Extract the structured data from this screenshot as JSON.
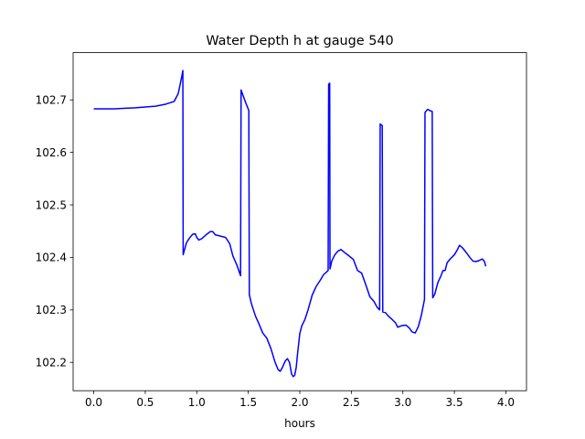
{
  "chart_data": {
    "type": "line",
    "title": "Water Depth h at gauge 540",
    "xlabel": "hours",
    "ylabel": "",
    "xlim": [
      -0.2,
      4.2
    ],
    "ylim": [
      102.146,
      102.79
    ],
    "xticks": [
      0.0,
      0.5,
      1.0,
      1.5,
      2.0,
      2.5,
      3.0,
      3.5,
      4.0
    ],
    "xtick_labels": [
      "0.0",
      "0.5",
      "1.0",
      "1.5",
      "2.0",
      "2.5",
      "3.0",
      "3.5",
      "4.0"
    ],
    "yticks": [
      102.2,
      102.3,
      102.4,
      102.5,
      102.6,
      102.7
    ],
    "ytick_labels": [
      "102.2",
      "102.3",
      "102.4",
      "102.5",
      "102.6",
      "102.7"
    ],
    "grid": false,
    "legend": "none",
    "series": [
      {
        "color": "#0000ff",
        "points": [
          [
            0.0,
            102.683
          ],
          [
            0.2,
            102.683
          ],
          [
            0.4,
            102.685
          ],
          [
            0.6,
            102.688
          ],
          [
            0.7,
            102.692
          ],
          [
            0.78,
            102.697
          ],
          [
            0.82,
            102.712
          ],
          [
            0.855,
            102.745
          ],
          [
            0.865,
            102.756
          ],
          [
            0.868,
            102.405
          ],
          [
            0.88,
            102.414
          ],
          [
            0.9,
            102.428
          ],
          [
            0.93,
            102.437
          ],
          [
            0.96,
            102.444
          ],
          [
            0.985,
            102.445
          ],
          [
            1.0,
            102.438
          ],
          [
            1.02,
            102.433
          ],
          [
            1.05,
            102.436
          ],
          [
            1.09,
            102.443
          ],
          [
            1.13,
            102.449
          ],
          [
            1.155,
            102.449
          ],
          [
            1.18,
            102.443
          ],
          [
            1.22,
            102.441
          ],
          [
            1.28,
            102.438
          ],
          [
            1.32,
            102.426
          ],
          [
            1.35,
            102.403
          ],
          [
            1.39,
            102.385
          ],
          [
            1.425,
            102.365
          ],
          [
            1.43,
            102.719
          ],
          [
            1.45,
            102.708
          ],
          [
            1.48,
            102.692
          ],
          [
            1.505,
            102.68
          ],
          [
            1.51,
            102.329
          ],
          [
            1.53,
            102.312
          ],
          [
            1.57,
            102.288
          ],
          [
            1.6,
            102.275
          ],
          [
            1.64,
            102.256
          ],
          [
            1.68,
            102.246
          ],
          [
            1.72,
            102.226
          ],
          [
            1.76,
            102.2
          ],
          [
            1.79,
            102.186
          ],
          [
            1.81,
            102.183
          ],
          [
            1.83,
            102.19
          ],
          [
            1.86,
            102.203
          ],
          [
            1.88,
            102.207
          ],
          [
            1.9,
            102.2
          ],
          [
            1.92,
            102.178
          ],
          [
            1.935,
            102.173
          ],
          [
            1.95,
            102.175
          ],
          [
            1.965,
            102.19
          ],
          [
            1.98,
            102.22
          ],
          [
            2.0,
            102.255
          ],
          [
            2.02,
            102.27
          ],
          [
            2.05,
            102.282
          ],
          [
            2.08,
            102.3
          ],
          [
            2.12,
            102.328
          ],
          [
            2.16,
            102.345
          ],
          [
            2.2,
            102.357
          ],
          [
            2.23,
            102.367
          ],
          [
            2.275,
            102.375
          ],
          [
            2.28,
            102.73
          ],
          [
            2.29,
            102.732
          ],
          [
            2.293,
            102.378
          ],
          [
            2.31,
            102.393
          ],
          [
            2.34,
            102.405
          ],
          [
            2.37,
            102.412
          ],
          [
            2.4,
            102.415
          ],
          [
            2.43,
            102.41
          ],
          [
            2.47,
            102.404
          ],
          [
            2.52,
            102.396
          ],
          [
            2.56,
            102.375
          ],
          [
            2.6,
            102.37
          ],
          [
            2.64,
            102.348
          ],
          [
            2.68,
            102.325
          ],
          [
            2.72,
            102.316
          ],
          [
            2.75,
            102.305
          ],
          [
            2.775,
            102.3
          ],
          [
            2.78,
            102.654
          ],
          [
            2.8,
            102.651
          ],
          [
            2.805,
            102.296
          ],
          [
            2.83,
            102.295
          ],
          [
            2.86,
            102.288
          ],
          [
            2.9,
            102.281
          ],
          [
            2.93,
            102.275
          ],
          [
            2.95,
            102.267
          ],
          [
            2.99,
            102.27
          ],
          [
            3.03,
            102.271
          ],
          [
            3.06,
            102.266
          ],
          [
            3.09,
            102.258
          ],
          [
            3.12,
            102.256
          ],
          [
            3.15,
            102.268
          ],
          [
            3.18,
            102.29
          ],
          [
            3.21,
            102.32
          ],
          [
            3.215,
            102.676
          ],
          [
            3.24,
            102.682
          ],
          [
            3.27,
            102.679
          ],
          [
            3.285,
            102.678
          ],
          [
            3.29,
            102.323
          ],
          [
            3.31,
            102.33
          ],
          [
            3.34,
            102.352
          ],
          [
            3.37,
            102.365
          ],
          [
            3.39,
            102.375
          ],
          [
            3.41,
            102.375
          ],
          [
            3.43,
            102.39
          ],
          [
            3.46,
            102.397
          ],
          [
            3.5,
            102.405
          ],
          [
            3.53,
            102.415
          ],
          [
            3.55,
            102.423
          ],
          [
            3.58,
            102.418
          ],
          [
            3.62,
            102.408
          ],
          [
            3.65,
            102.4
          ],
          [
            3.68,
            102.393
          ],
          [
            3.71,
            102.392
          ],
          [
            3.74,
            102.394
          ],
          [
            3.77,
            102.397
          ],
          [
            3.79,
            102.393
          ],
          [
            3.805,
            102.383
          ]
        ]
      }
    ]
  }
}
